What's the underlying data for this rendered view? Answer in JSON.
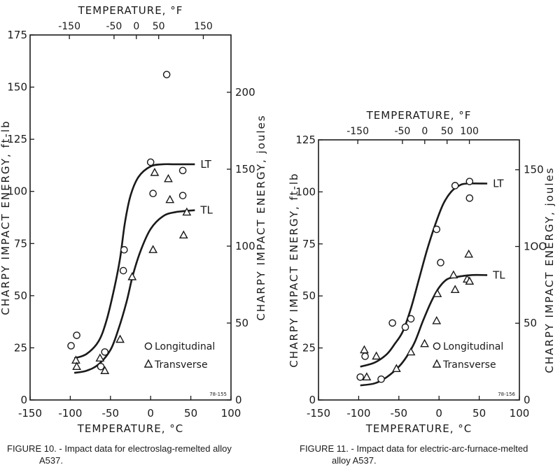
{
  "chart_data": [
    {
      "type": "scatter",
      "figure_label": "FIGURE 10. -",
      "caption_line1": "Impact data for electroslag-remelted alloy",
      "caption_line2": "A537.",
      "xlabel": "TEMPERATURE, °C",
      "x2label": "TEMPERATURE, °F",
      "ylabel": "CHARPY IMPACT ENERGY, ft-lb",
      "y2label": "CHARPY IMPACT ENERGY, joules",
      "xlim": [
        -150,
        100
      ],
      "ylim": [
        0,
        175
      ],
      "xticks": [
        -150,
        -100,
        -50,
        0,
        50,
        100
      ],
      "x2ticks": [
        "-150",
        "-50",
        "0",
        "50",
        "150"
      ],
      "x2ticks_f": [
        -150,
        -50,
        0,
        50,
        150
      ],
      "yticks": [
        0,
        25,
        50,
        75,
        100,
        125,
        150,
        175
      ],
      "y2ticks": [
        0,
        50,
        100,
        150,
        200
      ],
      "stamp": "78-155",
      "legend_position": "bottom-right",
      "series": [
        {
          "name": "Longitudinal",
          "marker": "circle",
          "x": [
            -99,
            -92,
            -62,
            -57,
            -33,
            -34,
            0,
            3,
            20,
            40,
            40
          ],
          "y": [
            26,
            31,
            16,
            23,
            72,
            62,
            114,
            99,
            156,
            110,
            98
          ]
        },
        {
          "name": "Transverse",
          "marker": "triangle",
          "x": [
            -93,
            -92,
            -63,
            -57,
            -38,
            -23,
            3,
            5,
            22,
            24,
            41,
            45
          ],
          "y": [
            19,
            16,
            20,
            14,
            29,
            59,
            72,
            109,
            106,
            96,
            79,
            90
          ]
        }
      ],
      "curves": [
        {
          "label": "LT",
          "x": [
            -95,
            -80,
            -65,
            -55,
            -45,
            -38,
            -32,
            -25,
            -15,
            0,
            15,
            30,
            55
          ],
          "y": [
            20,
            22,
            28,
            38,
            54,
            68,
            85,
            98,
            107,
            112,
            113,
            113,
            113
          ]
        },
        {
          "label": "TL",
          "x": [
            -95,
            -80,
            -65,
            -50,
            -40,
            -30,
            -22,
            -12,
            0,
            15,
            30,
            55
          ],
          "y": [
            13,
            14,
            17,
            24,
            34,
            47,
            60,
            72,
            82,
            88,
            90,
            91
          ]
        }
      ]
    },
    {
      "type": "scatter",
      "figure_label": "FIGURE 11. -",
      "caption_line1": "Impact data for electric-arc-furnace-melted",
      "caption_line2": "alloy A537.",
      "xlabel": "TEMPERATURE, °C",
      "x2label": "TEMPERATURE, °F",
      "ylabel": "CHARPY IMPACT ENERGY, ft-lb",
      "y2label": "CHARPY IMPACT ENERGY, joules",
      "xlim": [
        -150,
        100
      ],
      "ylim": [
        0,
        125
      ],
      "xticks": [
        -150,
        -100,
        -50,
        0,
        50,
        100
      ],
      "x2ticks": [
        "-150",
        "-50",
        "0",
        "50",
        "100"
      ],
      "x2ticks_f": [
        -150,
        -50,
        0,
        50,
        100
      ],
      "yticks": [
        0,
        25,
        50,
        75,
        100,
        125
      ],
      "y2ticks": [
        0,
        50,
        "1ОО",
        150
      ],
      "y2ticks_val": [
        0,
        50,
        100,
        150
      ],
      "stamp": "78-156",
      "legend_position": "bottom-right",
      "series": [
        {
          "name": "Longitudinal",
          "marker": "circle",
          "x": [
            -98,
            -92,
            -72,
            -58,
            -42,
            -35,
            -3,
            2,
            38,
            20,
            38
          ],
          "y": [
            11,
            21,
            10,
            37,
            35,
            39,
            82,
            66,
            105,
            103,
            97
          ]
        },
        {
          "name": "Transverse",
          "marker": "triangle",
          "x": [
            -93,
            -90,
            -78,
            -53,
            -35,
            -18,
            -3,
            -2,
            18,
            20,
            35,
            37,
            38
          ],
          "y": [
            24,
            11,
            21,
            15,
            23,
            27,
            38,
            51,
            60,
            53,
            58,
            70,
            57
          ]
        }
      ],
      "curves": [
        {
          "label": "LT",
          "x": [
            -98,
            -80,
            -65,
            -55,
            -45,
            -35,
            -25,
            -15,
            -5,
            5,
            15,
            25,
            35,
            60
          ],
          "y": [
            16,
            18,
            22,
            27,
            33,
            44,
            58,
            72,
            84,
            94,
            100,
            103,
            104,
            104
          ]
        },
        {
          "label": "TL",
          "x": [
            -98,
            -80,
            -65,
            -50,
            -40,
            -30,
            -20,
            -10,
            0,
            10,
            20,
            40,
            60
          ],
          "y": [
            7,
            8,
            11,
            16,
            21,
            28,
            38,
            47,
            54,
            58,
            59,
            60,
            60
          ]
        }
      ]
    }
  ]
}
